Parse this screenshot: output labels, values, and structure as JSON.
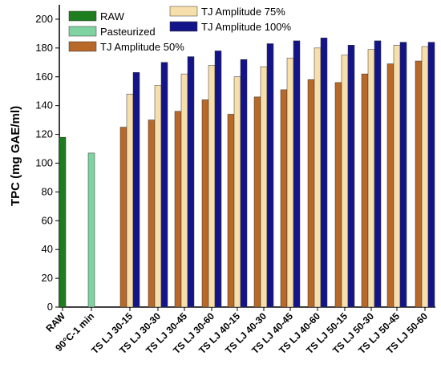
{
  "chart_data": {
    "type": "bar",
    "title": "",
    "xlabel": "",
    "ylabel": "TPC (mg GAE/ml)",
    "ylim": [
      0,
      210
    ],
    "yticks": [
      0,
      20,
      40,
      60,
      80,
      100,
      120,
      140,
      160,
      180,
      200
    ],
    "categories": [
      "RAW",
      "90°C-1 min",
      "TS LJ 30-15",
      "TS LJ 30-30",
      "TS LJ 30-45",
      "TS LJ 30-60",
      "TS LJ 40-15",
      "TS LJ 40-30",
      "TS LJ 40-45",
      "TS LJ 40-60",
      "TS LJ 50-15",
      "TS LJ 50-30",
      "TS LJ 50-45",
      "TS LJ 50-60"
    ],
    "legend_position": "top-left",
    "grid": false,
    "series": [
      {
        "name": "RAW",
        "color": "#1e7d1e",
        "values": [
          118,
          null,
          null,
          null,
          null,
          null,
          null,
          null,
          null,
          null,
          null,
          null,
          null,
          null
        ]
      },
      {
        "name": "Pasteurized",
        "color": "#7fd3a0",
        "values": [
          null,
          107,
          null,
          null,
          null,
          null,
          null,
          null,
          null,
          null,
          null,
          null,
          null,
          null
        ]
      },
      {
        "name": "TJ Amplitude 50%",
        "color": "#b8692a",
        "values": [
          null,
          null,
          125,
          130,
          136,
          144,
          134,
          146,
          151,
          158,
          156,
          162,
          169,
          171
        ]
      },
      {
        "name": "TJ Amplitude 75%",
        "color": "#f7dfab",
        "values": [
          null,
          null,
          148,
          154,
          162,
          168,
          160,
          167,
          173,
          180,
          175,
          179,
          182,
          181
        ]
      },
      {
        "name": "TJ Amplitude 100%",
        "color": "#14148a",
        "values": [
          null,
          null,
          163,
          170,
          174,
          178,
          172,
          183,
          185,
          187,
          182,
          185,
          184,
          184
        ]
      }
    ]
  }
}
